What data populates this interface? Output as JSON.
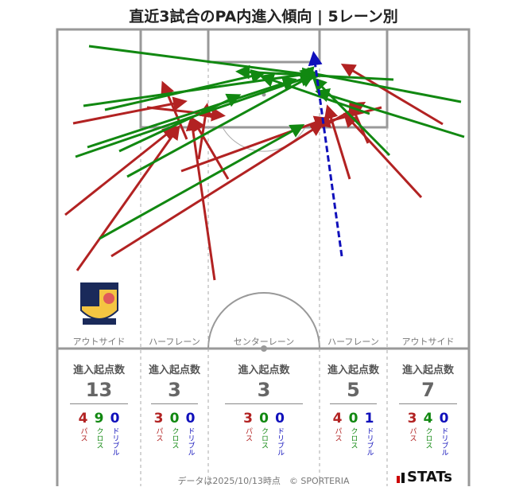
{
  "title": "直近3試合のPA内進入傾向 | 5レーン別",
  "lanes": [
    {
      "name": "アウトサイド",
      "label": "進入起点数",
      "total": 13,
      "breakdown": [
        {
          "value": 4,
          "label": "パス"
        },
        {
          "value": 9,
          "label": "クロス"
        },
        {
          "value": 0,
          "label": "ドリブル"
        }
      ]
    },
    {
      "name": "ハーフレーン",
      "label": "進入起点数",
      "total": 3,
      "breakdown": [
        {
          "value": 3,
          "label": "パス"
        },
        {
          "value": 0,
          "label": "クロス"
        },
        {
          "value": 0,
          "label": "ドリブル"
        }
      ]
    },
    {
      "name": "センターレーン",
      "label": "進入起点数",
      "total": 3,
      "breakdown": [
        {
          "value": 3,
          "label": "パス"
        },
        {
          "value": 0,
          "label": "クロス"
        },
        {
          "value": 0,
          "label": "ドリブル"
        }
      ]
    },
    {
      "name": "ハーフレーン",
      "label": "進入起点数",
      "total": 5,
      "breakdown": [
        {
          "value": 4,
          "label": "パス"
        },
        {
          "value": 0,
          "label": "クロス"
        },
        {
          "value": 1,
          "label": "ドリブル"
        }
      ]
    },
    {
      "name": "アウトサイド",
      "label": "進入起点数",
      "total": 7,
      "breakdown": [
        {
          "value": 3,
          "label": "パス"
        },
        {
          "value": 4,
          "label": "クロス"
        },
        {
          "value": 0,
          "label": "ドリブル"
        }
      ]
    }
  ],
  "footer": "データは2025/10/13時点　© SPORTERIA",
  "brand": "STATs"
}
